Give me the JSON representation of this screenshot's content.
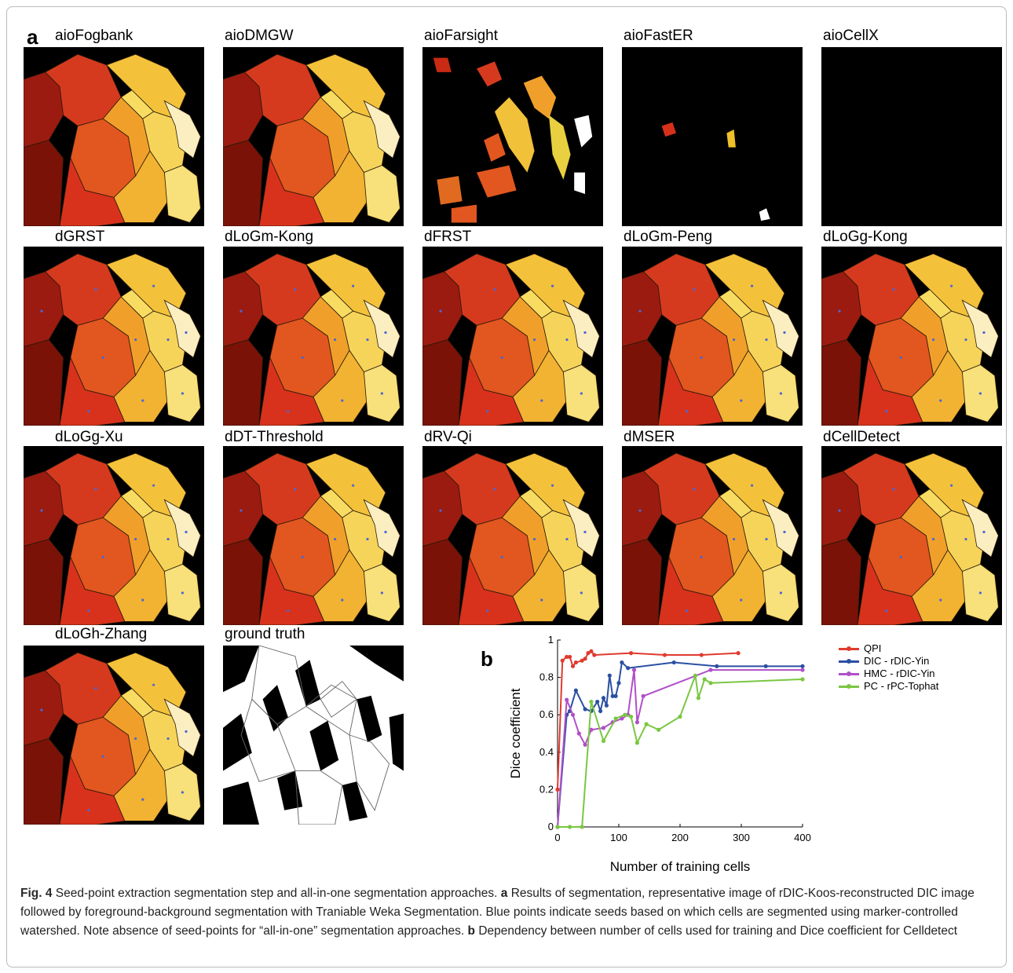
{
  "figure": {
    "panel_a_letter": "a",
    "panel_b_letter": "b",
    "tiles": [
      {
        "label": "aioFogbank",
        "variant": "aio"
      },
      {
        "label": "aioDMGW",
        "variant": "aio"
      },
      {
        "label": "aioFarsight",
        "variant": "farsight"
      },
      {
        "label": "aioFastER",
        "variant": "faster"
      },
      {
        "label": "aioCellX",
        "variant": "empty"
      },
      {
        "label": "dGRST",
        "variant": "seed"
      },
      {
        "label": "dLoGm-Kong",
        "variant": "seed"
      },
      {
        "label": "dFRST",
        "variant": "seed"
      },
      {
        "label": "dLoGm-Peng",
        "variant": "seed"
      },
      {
        "label": "dLoGg-Kong",
        "variant": "seed"
      },
      {
        "label": "dLoGg-Xu",
        "variant": "seed"
      },
      {
        "label": "dDT-Threshold",
        "variant": "seed"
      },
      {
        "label": "dRV-Qi",
        "variant": "seed"
      },
      {
        "label": "dMSER",
        "variant": "seed"
      },
      {
        "label": "dCellDetect",
        "variant": "seed"
      },
      {
        "label": "dLoGh-Zhang",
        "variant": "seed"
      },
      {
        "label": "ground truth",
        "variant": "truth"
      }
    ]
  },
  "chart_data": {
    "type": "line",
    "xlabel": "Number of training cells",
    "ylabel": "Dice coefficient",
    "xlim": [
      0,
      400
    ],
    "ylim": [
      0,
      1
    ],
    "xticks": [
      0,
      100,
      200,
      300,
      400
    ],
    "yticks": [
      0,
      0.2,
      0.4,
      0.6,
      0.8,
      1
    ],
    "ytick_labels": [
      "0",
      "0.2",
      "0.4",
      "0.6",
      "0.8",
      "1"
    ],
    "grid": false,
    "legend_position": "right",
    "series": [
      {
        "name": "QPI",
        "color": "#e03a2e",
        "x": [
          0,
          8,
          15,
          20,
          25,
          30,
          40,
          45,
          50,
          55,
          60,
          120,
          175,
          235,
          295
        ],
        "y": [
          0.2,
          0.89,
          0.91,
          0.91,
          0.86,
          0.88,
          0.89,
          0.9,
          0.93,
          0.94,
          0.92,
          0.93,
          0.92,
          0.92,
          0.93
        ]
      },
      {
        "name": "DIC - rDIC-Yin",
        "color": "#2b4fa2",
        "x": [
          0,
          15,
          20,
          30,
          45,
          55,
          65,
          70,
          75,
          80,
          85,
          90,
          95,
          100,
          105,
          115,
          190,
          260,
          340,
          400
        ],
        "y": [
          0.0,
          0.6,
          0.62,
          0.73,
          0.63,
          0.62,
          0.67,
          0.62,
          0.69,
          0.65,
          0.81,
          0.7,
          0.7,
          0.77,
          0.88,
          0.85,
          0.88,
          0.86,
          0.86,
          0.86
        ]
      },
      {
        "name": "HMC - rDIC-Yin",
        "color": "#b04fc9",
        "x": [
          0,
          15,
          25,
          35,
          45,
          55,
          75,
          90,
          105,
          115,
          125,
          130,
          140,
          250,
          400
        ],
        "y": [
          0.0,
          0.68,
          0.6,
          0.5,
          0.44,
          0.52,
          0.53,
          0.56,
          0.58,
          0.6,
          0.84,
          0.56,
          0.7,
          0.84,
          0.84
        ]
      },
      {
        "name": "PC - rPC-Tophat",
        "color": "#7ac742",
        "x": [
          0,
          20,
          40,
          55,
          75,
          95,
          110,
          120,
          130,
          145,
          165,
          200,
          225,
          230,
          240,
          250,
          400
        ],
        "y": [
          0.0,
          0.0,
          0.0,
          0.67,
          0.46,
          0.58,
          0.6,
          0.59,
          0.45,
          0.55,
          0.52,
          0.59,
          0.81,
          0.69,
          0.79,
          0.77,
          0.79
        ]
      }
    ]
  },
  "caption": {
    "title": "Fig. 4",
    "intro": "Seed-point extraction segmentation step and all-in-one segmentation approaches.",
    "a_letter": "a",
    "a_text": "Results of segmentation, representative image of rDIC-Koos-reconstructed DIC image followed by foreground-background segmentation with Traniable Weka Segmentation. Blue points indicate seeds based on which cells are segmented using marker-controlled watershed. Note absence of seed-points for “all-in-one” segmentation approaches.",
    "b_letter": "b",
    "b_text": "Dependency between number of cells used for training and Dice coefficient for Celldetect"
  }
}
